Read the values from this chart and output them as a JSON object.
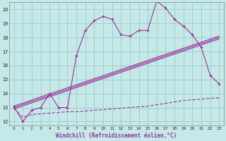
{
  "xlabel": "Windchill (Refroidissement éolien,°C)",
  "xlim": [
    -0.5,
    23.5
  ],
  "ylim": [
    11.7,
    20.5
  ],
  "yticks": [
    12,
    13,
    14,
    15,
    16,
    17,
    18,
    19,
    20
  ],
  "xticks": [
    0,
    1,
    2,
    3,
    4,
    5,
    6,
    7,
    8,
    9,
    10,
    11,
    12,
    13,
    14,
    15,
    16,
    17,
    18,
    19,
    20,
    21,
    22,
    23
  ],
  "background_color": "#c5e8e8",
  "grid_color": "#a0c8c8",
  "line_color": "#993399",
  "temp_data": [
    13.1,
    12.0,
    12.8,
    13.0,
    14.0,
    13.0,
    13.0,
    16.7,
    18.5,
    19.2,
    19.5,
    19.3,
    18.2,
    18.1,
    18.5,
    18.5,
    20.6,
    20.1,
    19.3,
    18.8,
    18.2,
    17.3,
    15.3,
    14.7
  ],
  "diag_line1": [
    [
      0,
      13.1
    ],
    [
      23,
      18.1
    ]
  ],
  "diag_line2": [
    [
      0,
      13.0
    ],
    [
      23,
      18.0
    ]
  ],
  "diag_line3": [
    [
      0,
      12.9
    ],
    [
      23,
      17.9
    ]
  ],
  "dashed_data_x": [
    0,
    1,
    2,
    3,
    4,
    5,
    6,
    7,
    8,
    9,
    10,
    11,
    12,
    13,
    14,
    15,
    16,
    17,
    18,
    19,
    20,
    21,
    22,
    23
  ],
  "dashed_data_y": [
    12.95,
    12.3,
    12.5,
    12.55,
    12.6,
    12.65,
    12.7,
    12.7,
    12.75,
    12.8,
    12.85,
    12.9,
    12.95,
    13.0,
    13.05,
    13.1,
    13.2,
    13.3,
    13.4,
    13.5,
    13.55,
    13.6,
    13.65,
    13.7
  ]
}
